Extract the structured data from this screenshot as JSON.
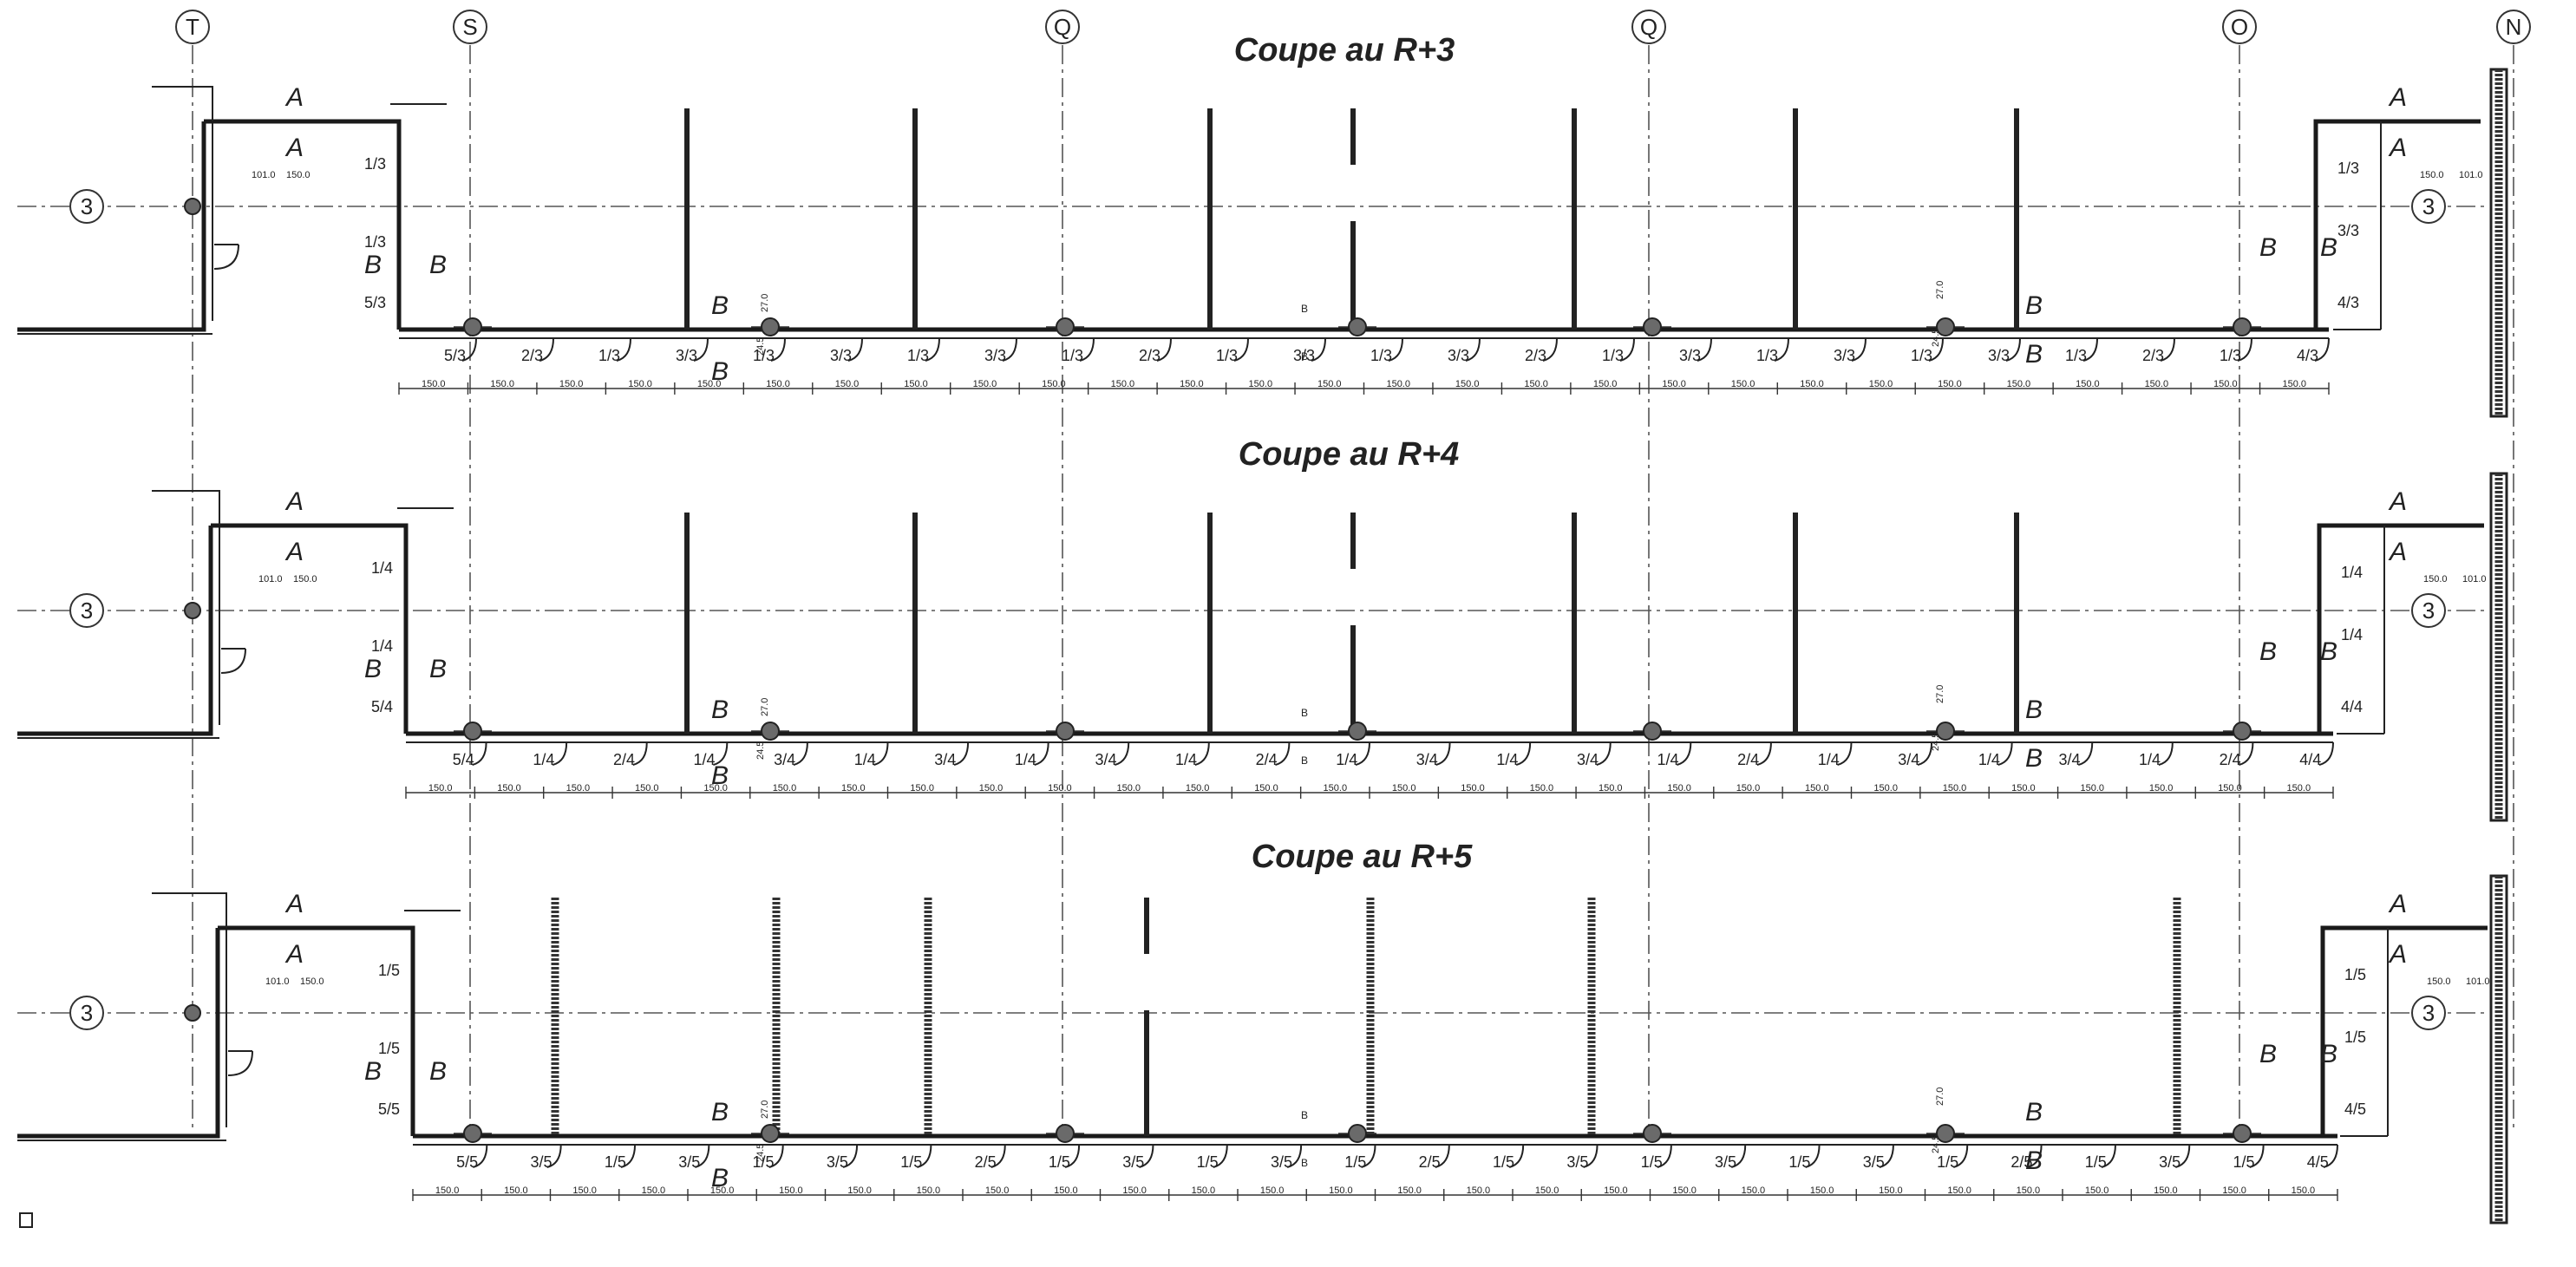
{
  "axes_top": [
    "T",
    "S",
    "Q",
    "Q",
    "O",
    "N"
  ],
  "row_axis": "3",
  "sections": [
    {
      "title": "Coupe au R+3",
      "panels": [
        "5/3",
        "2/3",
        "1/3",
        "3/3",
        "1/3",
        "3/3",
        "1/3",
        "3/3",
        "1/3",
        "2/3",
        "1/3",
        "3/3",
        "1/3",
        "3/3",
        "2/3",
        "1/3",
        "3/3",
        "1/3",
        "3/3",
        "1/3",
        "3/3",
        "1/3",
        "2/3",
        "1/3",
        "4/3"
      ],
      "vertical_labels": [
        "1/3",
        "1/3",
        "5/3",
        "1/3",
        "3/3",
        "4/3"
      ],
      "dims": [
        "150.0",
        "150.0",
        "150.0",
        "150.0",
        "150.0",
        "150.0",
        "150.0",
        "150.0",
        "150.0",
        "150.0",
        "150.0",
        "150.0",
        "150.0",
        "150.0",
        "150.0",
        "150.0",
        "150.0",
        "150.0",
        "150.0",
        "150.0",
        "150.0",
        "150.0",
        "150.0",
        "150.0",
        "150.0",
        "150.0",
        "150.0",
        "150.0"
      ]
    },
    {
      "title": "Coupe au R+4",
      "panels": [
        "5/4",
        "1/4",
        "2/4",
        "1/4",
        "3/4",
        "1/4",
        "3/4",
        "1/4",
        "3/4",
        "1/4",
        "2/4",
        "1/4",
        "3/4",
        "1/4",
        "3/4",
        "1/4",
        "2/4",
        "1/4",
        "3/4",
        "1/4",
        "3/4",
        "1/4",
        "2/4",
        "4/4"
      ],
      "vertical_labels": [
        "1/4",
        "1/4",
        "5/4",
        "1/4",
        "1/4",
        "4/4"
      ],
      "dims": [
        "150.0",
        "150.0",
        "150.0",
        "150.0",
        "150.0",
        "150.0",
        "150.0",
        "150.0",
        "150.0",
        "150.0",
        "150.0",
        "150.0",
        "150.0",
        "150.0",
        "150.0",
        "150.0",
        "150.0",
        "150.0",
        "150.0",
        "150.0",
        "150.0",
        "150.0",
        "150.0",
        "150.0",
        "150.0",
        "150.0",
        "150.0",
        "150.0"
      ]
    },
    {
      "title": "Coupe au R+5",
      "panels": [
        "5/5",
        "3/5",
        "1/5",
        "3/5",
        "1/5",
        "3/5",
        "1/5",
        "2/5",
        "1/5",
        "3/5",
        "1/5",
        "3/5",
        "1/5",
        "2/5",
        "1/5",
        "3/5",
        "1/5",
        "3/5",
        "1/5",
        "3/5",
        "1/5",
        "2/5",
        "1/5",
        "3/5",
        "1/5",
        "4/5"
      ],
      "vertical_labels": [
        "1/5",
        "1/5",
        "5/5",
        "1/5",
        "1/5",
        "4/5"
      ],
      "dims": [
        "150.0",
        "150.0",
        "150.0",
        "150.0",
        "150.0",
        "150.0",
        "150.0",
        "150.0",
        "150.0",
        "150.0",
        "150.0",
        "150.0",
        "150.0",
        "150.0",
        "150.0",
        "150.0",
        "150.0",
        "150.0",
        "150.0",
        "150.0",
        "150.0",
        "150.0",
        "150.0",
        "150.0",
        "150.0",
        "150.0",
        "150.0",
        "150.0"
      ]
    }
  ],
  "section_marks": [
    "A",
    "B"
  ],
  "small_dims": [
    "101.0",
    "150.0",
    "27.0",
    "24.5"
  ]
}
